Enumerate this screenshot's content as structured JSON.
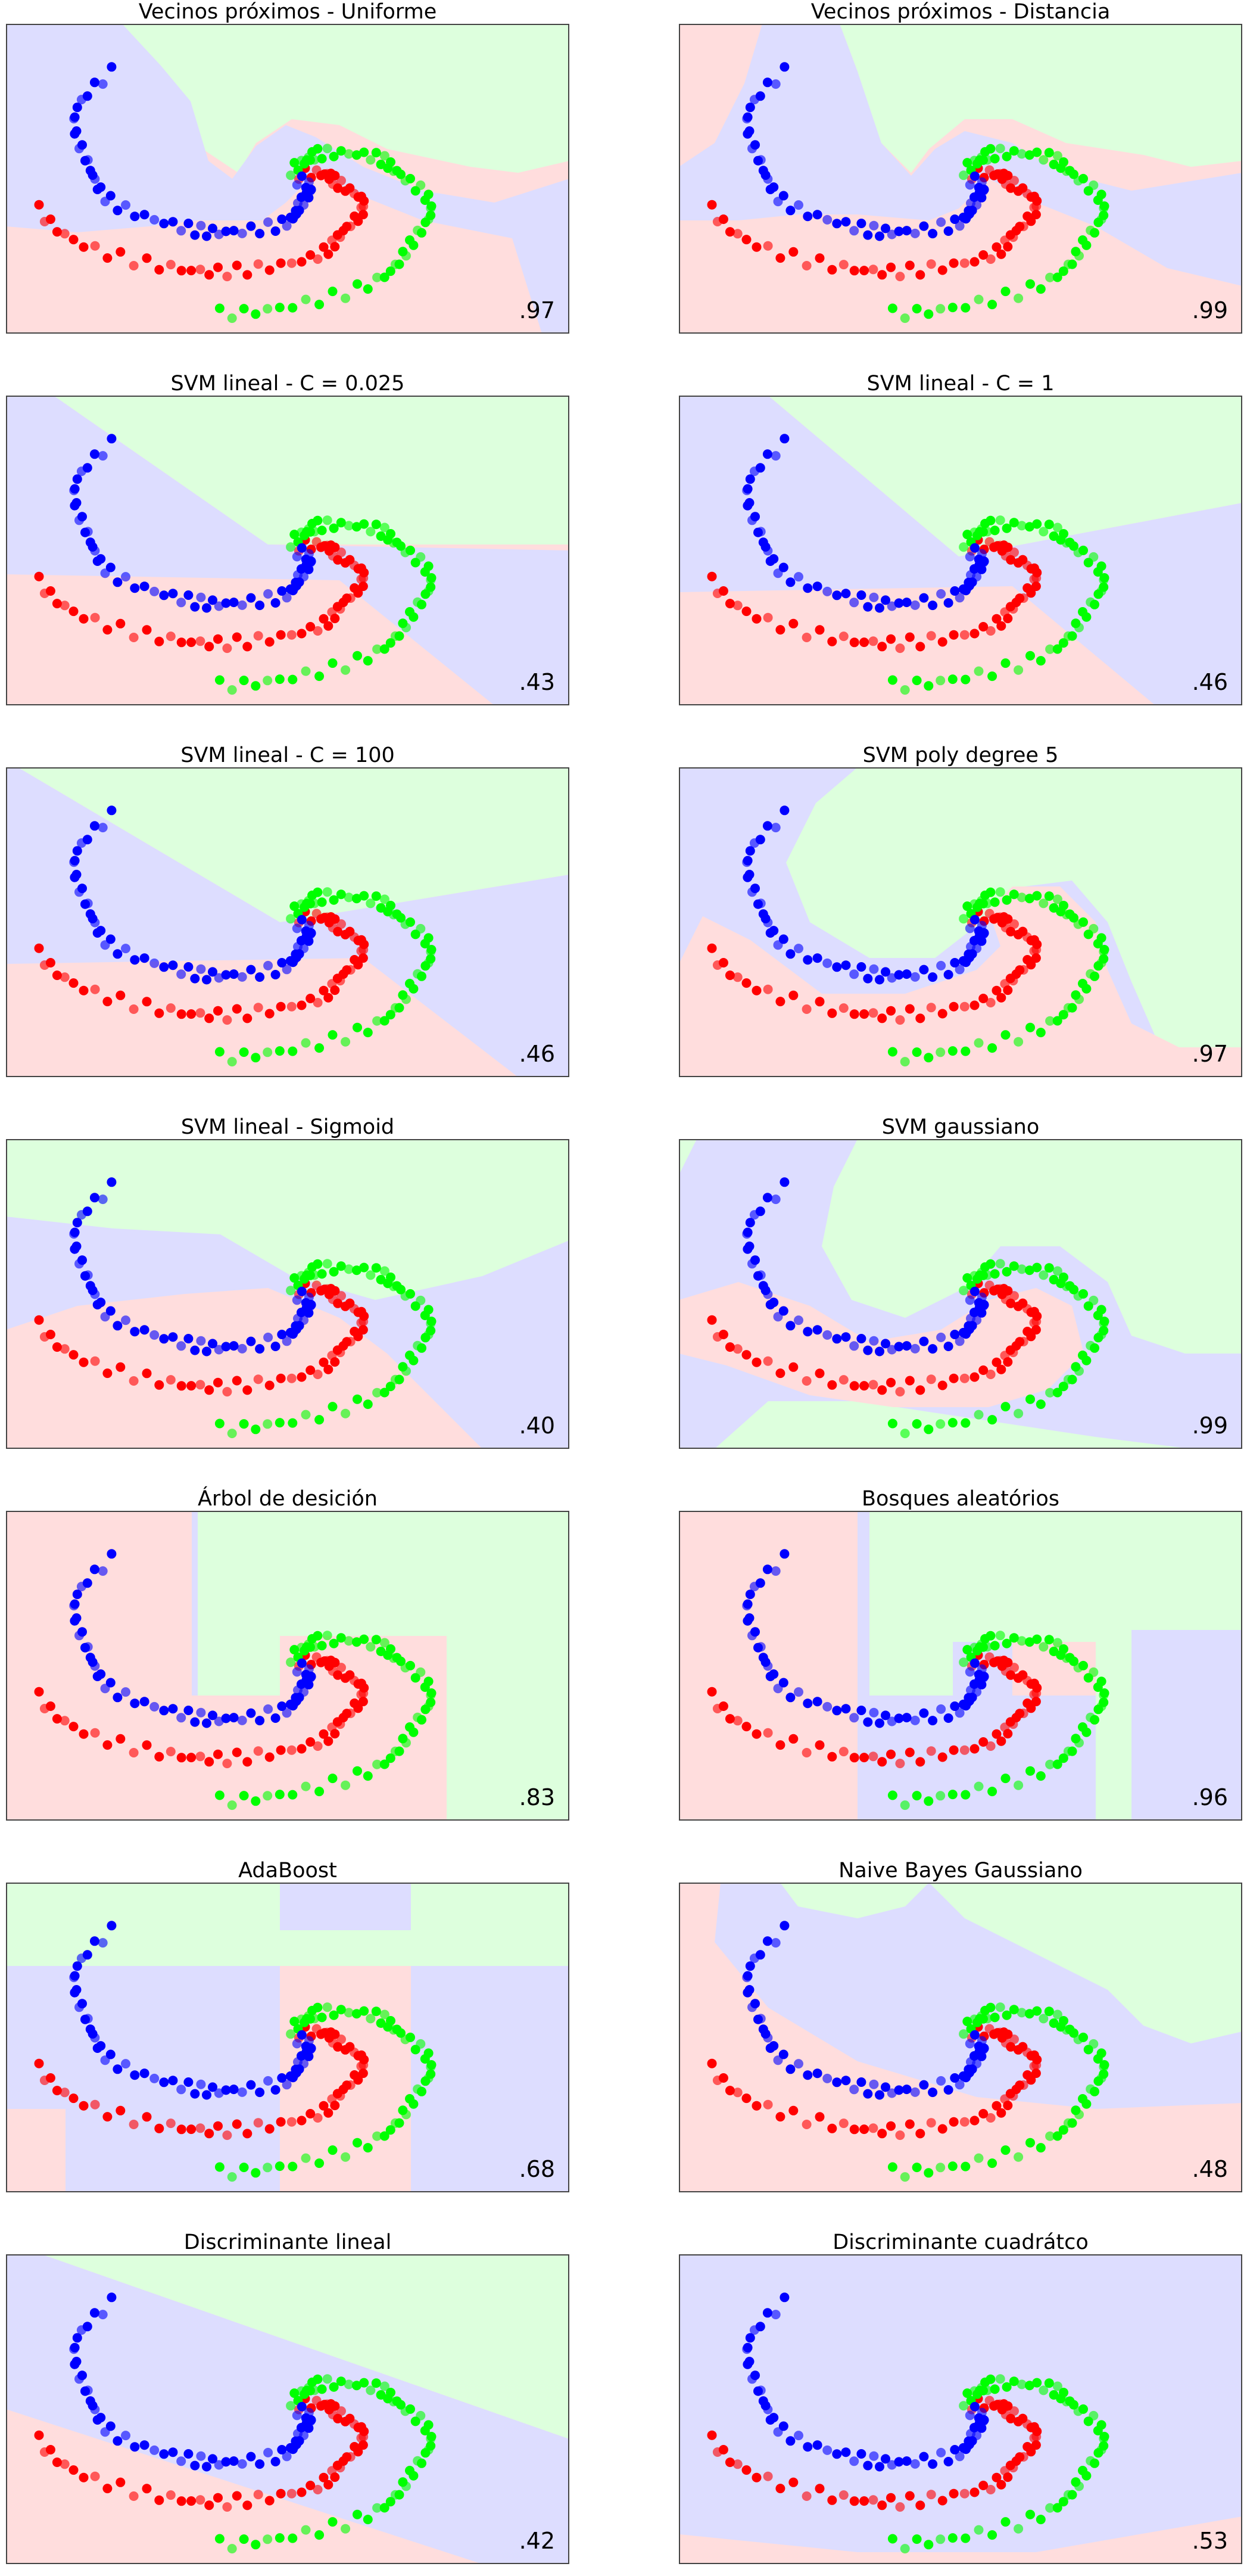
{
  "colors": {
    "red": "#ff0000",
    "green": "#00ff00",
    "blue": "#0000ff",
    "bg_red": "#ffdddd",
    "bg_green": "#ddffdd",
    "bg_blue": "#ddddff",
    "frame": "#444444"
  },
  "chart_data": [
    {
      "type": "scatter",
      "title": "Vecinos próximos - Uniforme",
      "score": ".97",
      "regions": "knn_uniform"
    },
    {
      "type": "scatter",
      "title": "Vecinos próximos - Distancia",
      "score": ".99",
      "regions": "knn_distance"
    },
    {
      "type": "scatter",
      "title": "SVM lineal - C = 0.025",
      "score": ".43",
      "regions": "linear_a"
    },
    {
      "type": "scatter",
      "title": "SVM lineal - C = 1",
      "score": ".46",
      "regions": "linear_b"
    },
    {
      "type": "scatter",
      "title": "SVM lineal - C = 100",
      "score": ".46",
      "regions": "linear_c"
    },
    {
      "type": "scatter",
      "title": "SVM poly degree 5",
      "score": ".97",
      "regions": "poly"
    },
    {
      "type": "scatter",
      "title": "SVM lineal - Sigmoid",
      "score": ".40",
      "regions": "sigmoid"
    },
    {
      "type": "scatter",
      "title": "SVM gaussiano",
      "score": ".99",
      "regions": "rbf"
    },
    {
      "type": "scatter",
      "title": "Árbol de desición",
      "score": ".83",
      "regions": "tree"
    },
    {
      "type": "scatter",
      "title": "Bosques aleatórios",
      "score": ".96",
      "regions": "forest"
    },
    {
      "type": "scatter",
      "title": "AdaBoost",
      "score": ".68",
      "regions": "adaboost"
    },
    {
      "type": "scatter",
      "title": "Naive Bayes Gaussiano",
      "score": ".48",
      "regions": "nb"
    },
    {
      "type": "scatter",
      "title": "Discriminante lineal",
      "score": ".42",
      "regions": "lda"
    },
    {
      "type": "scatter",
      "title": "Discriminante cuadrátco",
      "score": ".53",
      "regions": "qda"
    }
  ]
}
